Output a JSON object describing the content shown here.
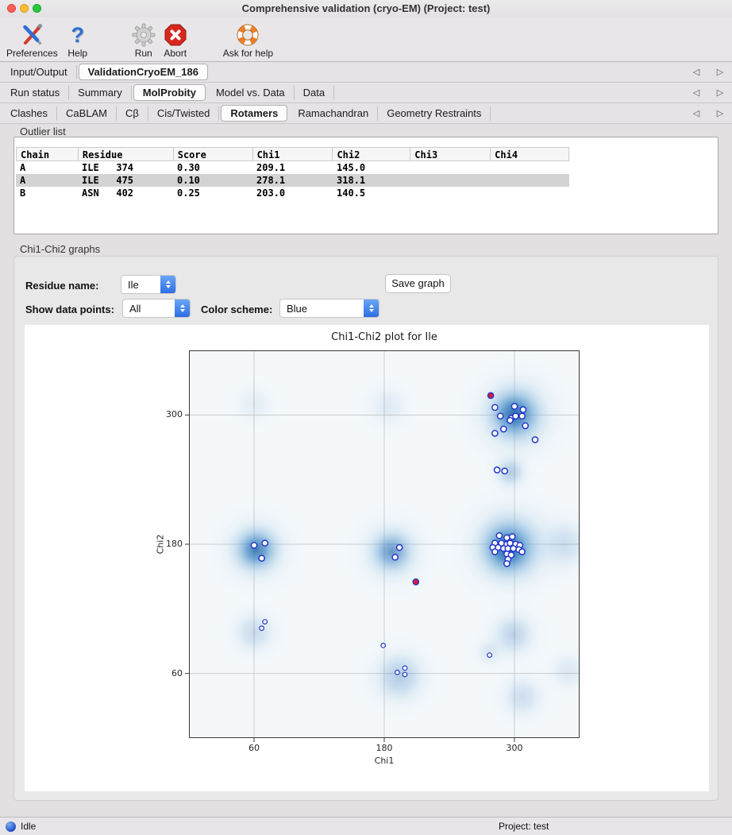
{
  "window": {
    "title": "Comprehensive validation (cryo-EM) (Project: test)"
  },
  "toolbar": {
    "items": [
      {
        "label": "Preferences",
        "icon": "tools-icon"
      },
      {
        "label": "Help",
        "icon": "question-icon"
      },
      {
        "label": "Run",
        "icon": "gear-icon"
      },
      {
        "label": "Abort",
        "icon": "abort-icon"
      },
      {
        "label": "Ask for help",
        "icon": "lifebuoy-icon"
      }
    ]
  },
  "tab_rows": [
    {
      "tabs": [
        {
          "label": "Input/Output",
          "selected": false
        },
        {
          "label": "ValidationCryoEM_186",
          "selected": true
        }
      ]
    },
    {
      "tabs": [
        {
          "label": "Run status",
          "selected": false
        },
        {
          "label": "Summary",
          "selected": false
        },
        {
          "label": "MolProbity",
          "selected": true
        },
        {
          "label": "Model vs. Data",
          "selected": false
        },
        {
          "label": "Data",
          "selected": false
        }
      ]
    },
    {
      "tabs": [
        {
          "label": "Clashes",
          "selected": false
        },
        {
          "label": "CaBLAM",
          "selected": false
        },
        {
          "label": "Cβ",
          "selected": false
        },
        {
          "label": "Cis/Twisted",
          "selected": false
        },
        {
          "label": "Rotamers",
          "selected": true
        },
        {
          "label": "Ramachandran",
          "selected": false
        },
        {
          "label": "Geometry Restraints",
          "selected": false
        }
      ]
    }
  ],
  "outlier_list": {
    "section_label": "Outlier list",
    "columns": [
      "Chain",
      "Residue",
      "Score",
      "Chi1",
      "Chi2",
      "Chi3",
      "Chi4"
    ],
    "rows": [
      {
        "chain": "A",
        "residue": "ILE   374",
        "score": "0.30",
        "chi1": "209.1",
        "chi2": "145.0",
        "chi3": "",
        "chi4": "",
        "selected": false
      },
      {
        "chain": "A",
        "residue": "ILE   475",
        "score": "0.10",
        "chi1": "278.1",
        "chi2": "318.1",
        "chi3": "",
        "chi4": "",
        "selected": true
      },
      {
        "chain": "B",
        "residue": "ASN   402",
        "score": "0.25",
        "chi1": "203.0",
        "chi2": "140.5",
        "chi3": "",
        "chi4": "",
        "selected": false
      }
    ]
  },
  "graphs_section": {
    "section_label": "Chi1-Chi2 graphs",
    "residue_name_label": "Residue name:",
    "residue_value": "Ile",
    "save_button_label": "Save graph",
    "show_points_label": "Show data points:",
    "show_points_value": "All",
    "color_scheme_label": "Color scheme:",
    "color_scheme_value": "Blue"
  },
  "chart_data": {
    "type": "scatter",
    "title": "Chi1-Chi2 plot for Ile",
    "xlabel": "Chi1",
    "ylabel": "Chi2",
    "xlim": [
      0,
      360
    ],
    "ylim": [
      0,
      360
    ],
    "xticks": [
      60,
      180,
      300
    ],
    "yticks": [
      60,
      180,
      300
    ],
    "grid": true,
    "colors": {
      "background": "#f4f8fb",
      "grid": "#cccccc",
      "axes_edge": "#3a3a3a",
      "heat_core": "#1a5fa8",
      "point_edge": "#2336c9",
      "point_fill": "#ffffff",
      "outlier_fill": "#e01b2c"
    },
    "density_blobs": [
      {
        "x": 300,
        "y": 301,
        "r": 46,
        "a": 0.9
      },
      {
        "x": 301,
        "y": 300,
        "r": 78,
        "a": 0.35
      },
      {
        "x": 294,
        "y": 176,
        "r": 50,
        "a": 1.0
      },
      {
        "x": 296,
        "y": 178,
        "r": 82,
        "a": 0.4
      },
      {
        "x": 62,
        "y": 175,
        "r": 40,
        "a": 0.75
      },
      {
        "x": 62,
        "y": 175,
        "r": 66,
        "a": 0.28
      },
      {
        "x": 187,
        "y": 173,
        "r": 40,
        "a": 0.55
      },
      {
        "x": 187,
        "y": 173,
        "r": 66,
        "a": 0.22
      },
      {
        "x": 194,
        "y": 57,
        "r": 56,
        "a": 0.3
      },
      {
        "x": 60,
        "y": 98,
        "r": 46,
        "a": 0.2
      },
      {
        "x": 299,
        "y": 96,
        "r": 48,
        "a": 0.25
      },
      {
        "x": 307,
        "y": 38,
        "r": 46,
        "a": 0.18
      },
      {
        "x": 349,
        "y": 62,
        "r": 40,
        "a": 0.12
      },
      {
        "x": 183,
        "y": 308,
        "r": 46,
        "a": 0.1
      },
      {
        "x": 60,
        "y": 310,
        "r": 40,
        "a": 0.08
      },
      {
        "x": 296,
        "y": 247,
        "r": 34,
        "a": 0.3
      },
      {
        "x": 346,
        "y": 180,
        "r": 56,
        "a": 0.18
      },
      {
        "x": 277,
        "y": 80,
        "r": 30,
        "a": 0.12
      }
    ],
    "series": [
      {
        "name": "data points",
        "marker": "open-circle",
        "size": 3.6,
        "points": [
          [
            282,
            307
          ],
          [
            300,
            308
          ],
          [
            308,
            305
          ],
          [
            287,
            299
          ],
          [
            297,
            297
          ],
          [
            301,
            299
          ],
          [
            307,
            299
          ],
          [
            296,
            295
          ],
          [
            310,
            290
          ],
          [
            290,
            287
          ],
          [
            282,
            283
          ],
          [
            319,
            277
          ],
          [
            284,
            249
          ],
          [
            291,
            248
          ],
          [
            60,
            179
          ],
          [
            70,
            181
          ],
          [
            67,
            167
          ],
          [
            194,
            177
          ],
          [
            190,
            168
          ],
          [
            286,
            188
          ],
          [
            293,
            186
          ],
          [
            298,
            187
          ],
          [
            282,
            181
          ],
          [
            288,
            181
          ],
          [
            293,
            180
          ],
          [
            296,
            181
          ],
          [
            301,
            180
          ],
          [
            305,
            179
          ],
          [
            280,
            177
          ],
          [
            285,
            177
          ],
          [
            290,
            176
          ],
          [
            294,
            176
          ],
          [
            299,
            176
          ],
          [
            304,
            175
          ],
          [
            307,
            173
          ],
          [
            282,
            173
          ],
          [
            293,
            171
          ],
          [
            297,
            170
          ],
          [
            294,
            166
          ],
          [
            293,
            162
          ]
        ]
      },
      {
        "name": "sparse data points",
        "marker": "open-circle-small",
        "size": 2.8,
        "points": [
          [
            70,
            108
          ],
          [
            67,
            102
          ],
          [
            179,
            86
          ],
          [
            192,
            61
          ],
          [
            199,
            65
          ],
          [
            199,
            59
          ],
          [
            277,
            77
          ]
        ]
      },
      {
        "name": "outliers",
        "marker": "filled-circle",
        "size": 3.6,
        "points": [
          [
            209.1,
            145.0
          ],
          [
            278.1,
            318.1
          ]
        ]
      }
    ]
  },
  "status_bar": {
    "status": "Idle",
    "project": "Project: test"
  }
}
